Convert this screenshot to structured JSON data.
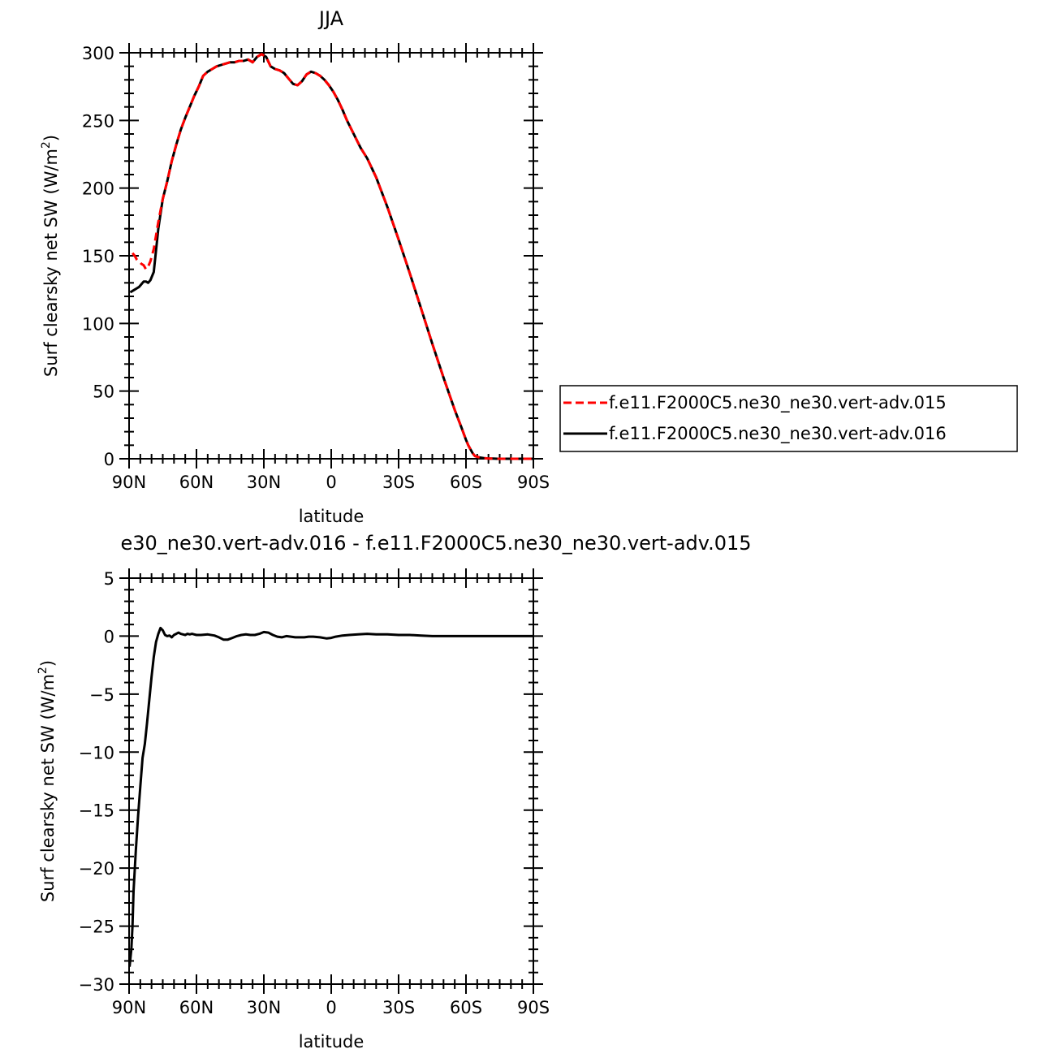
{
  "chart_data": [
    {
      "type": "line",
      "title": "JJA",
      "xlabel": "latitude",
      "ylabel_text": "Surf clearsky net SW (W/m",
      "ylabel_sup": "2",
      "ylabel_close": ")",
      "xlim": [
        90,
        -90
      ],
      "ylim": [
        0,
        300
      ],
      "xticks": [
        {
          "value": 90,
          "label": "90N"
        },
        {
          "value": 60,
          "label": "60N"
        },
        {
          "value": 30,
          "label": "30N"
        },
        {
          "value": 0,
          "label": "0"
        },
        {
          "value": -30,
          "label": "30S"
        },
        {
          "value": -60,
          "label": "60S"
        },
        {
          "value": -90,
          "label": "90S"
        }
      ],
      "yticks": [
        {
          "value": 0,
          "label": "0"
        },
        {
          "value": 50,
          "label": "50"
        },
        {
          "value": 100,
          "label": "100"
        },
        {
          "value": 150,
          "label": "150"
        },
        {
          "value": 200,
          "label": "200"
        },
        {
          "value": 250,
          "label": "250"
        },
        {
          "value": 300,
          "label": "300"
        }
      ],
      "legend_placement": "right",
      "series": [
        {
          "name": "f.e11.F2000C5.ne30_ne30.vert-adv.015",
          "color": "#ff0000",
          "dash": "dashed",
          "x": [
            88.5,
            87.5,
            86.5,
            85.5,
            84.5,
            83.5,
            82.5,
            81.5,
            80.5,
            79,
            77,
            75,
            73,
            71,
            69,
            67,
            65,
            63,
            61,
            59,
            57,
            55,
            53,
            51,
            49,
            47,
            45,
            43,
            41,
            39,
            37,
            35,
            33,
            31,
            29,
            27,
            25,
            23,
            21,
            19,
            17,
            15,
            13,
            11,
            9,
            7,
            5,
            3,
            1,
            -1,
            -3,
            -5,
            -7,
            -10,
            -13,
            -16,
            -20,
            -25,
            -30,
            -35,
            -40,
            -45,
            -50,
            -55,
            -58,
            -60,
            -61,
            -62,
            -63,
            -64,
            -66,
            -68,
            -70,
            -72,
            -74,
            -76,
            -78,
            -80,
            -84,
            -88,
            -90
          ],
          "values": [
            152,
            150,
            147,
            146,
            144,
            143,
            140,
            142,
            146,
            155,
            175,
            192,
            205,
            220,
            232,
            243,
            252,
            260,
            268,
            275,
            283,
            286,
            288,
            290,
            291,
            292,
            293,
            293,
            294,
            294,
            295,
            293,
            297,
            299,
            297,
            290,
            288,
            287,
            285,
            281,
            277,
            276,
            279,
            284,
            286,
            285,
            283,
            280,
            276,
            271,
            265,
            258,
            250,
            240,
            230,
            222,
            208,
            186,
            162,
            137,
            111,
            85,
            60,
            36,
            23,
            14,
            10,
            7,
            4,
            2,
            1,
            0.5,
            0.2,
            0.1,
            0,
            0,
            0,
            0,
            0,
            0,
            0
          ]
        },
        {
          "name": "f.e11.F2000C5.ne30_ne30.vert-adv.016",
          "color": "#000000",
          "dash": "solid",
          "x": [
            89.5,
            88.5,
            87.5,
            86.5,
            85.5,
            84.5,
            83.5,
            82.5,
            81.5,
            80.5,
            79,
            77,
            75,
            73,
            71,
            69,
            67,
            65,
            63,
            61,
            59,
            57,
            55,
            53,
            51,
            49,
            47,
            45,
            43,
            41,
            39,
            37,
            35,
            33,
            31,
            29,
            27,
            25,
            23,
            21,
            19,
            17,
            15,
            13,
            11,
            9,
            7,
            5,
            3,
            1,
            -1,
            -3,
            -5,
            -7,
            -10,
            -13,
            -16,
            -20,
            -25,
            -30,
            -35,
            -40,
            -45,
            -50,
            -55,
            -58,
            -60,
            -61,
            -62,
            -63,
            -64,
            -66,
            -68,
            -70,
            -72,
            -74,
            -76,
            -78,
            -80,
            -84,
            -88,
            -90
          ],
          "values": [
            123,
            124,
            125,
            126,
            127,
            129,
            131,
            131,
            130,
            132,
            138,
            170,
            192,
            205,
            220,
            232,
            243,
            252,
            260,
            268,
            275,
            283,
            286,
            288,
            290,
            291,
            292,
            293,
            293,
            294,
            294,
            295,
            293,
            297,
            299,
            297,
            290,
            288,
            287,
            285,
            281,
            277,
            276,
            279,
            284,
            286,
            285,
            283,
            280,
            276,
            271,
            265,
            258,
            250,
            240,
            230,
            222,
            208,
            186,
            162,
            137,
            111,
            85,
            60,
            36,
            23,
            14,
            10,
            7,
            4,
            2,
            1,
            0.5,
            0.2,
            0.1,
            0,
            0,
            0,
            0,
            0,
            0,
            0
          ]
        }
      ]
    },
    {
      "type": "line",
      "title": "e30_ne30.vert-adv.016 - f.e11.F2000C5.ne30_ne30.vert-adv.015",
      "xlabel": "latitude",
      "ylabel_text": "Surf clearsky net SW (W/m",
      "ylabel_sup": "2",
      "ylabel_close": ")",
      "xlim": [
        90,
        -90
      ],
      "ylim": [
        -30,
        5
      ],
      "xticks": [
        {
          "value": 90,
          "label": "90N"
        },
        {
          "value": 60,
          "label": "60N"
        },
        {
          "value": 30,
          "label": "30N"
        },
        {
          "value": 0,
          "label": "0"
        },
        {
          "value": -30,
          "label": "30S"
        },
        {
          "value": -60,
          "label": "60S"
        },
        {
          "value": -90,
          "label": "90S"
        }
      ],
      "yticks": [
        {
          "value": 5,
          "label": "5"
        },
        {
          "value": 0,
          "label": "0"
        },
        {
          "value": -5,
          "label": "−5"
        },
        {
          "value": -10,
          "label": "−10"
        },
        {
          "value": -15,
          "label": "−15"
        },
        {
          "value": -20,
          "label": "−20"
        },
        {
          "value": -25,
          "label": "−25"
        },
        {
          "value": -30,
          "label": "−30"
        }
      ],
      "series": [
        {
          "name": "",
          "color": "#000000",
          "dash": "solid",
          "x": [
            89.8,
            89,
            88.5,
            88,
            87,
            86,
            85,
            84,
            83,
            82,
            81,
            80,
            79,
            78,
            77,
            76,
            75,
            74,
            73,
            72,
            71,
            70,
            69,
            68,
            67,
            66,
            65,
            64,
            63,
            62,
            61,
            60,
            58,
            55,
            52,
            50,
            48,
            46,
            44,
            42,
            40,
            38,
            36,
            34,
            32,
            30,
            28,
            26,
            24,
            22,
            20,
            18,
            16,
            14,
            12,
            10,
            8,
            5,
            2,
            0,
            -2,
            -5,
            -8,
            -12,
            -16,
            -20,
            -25,
            -30,
            -35,
            -40,
            -45,
            -50,
            -55,
            -58,
            -60,
            -65,
            -70,
            -75,
            -80,
            -85,
            -90
          ],
          "values": [
            -28.5,
            -27,
            -25,
            -22,
            -18.5,
            -15.5,
            -13,
            -10.5,
            -9.3,
            -7.5,
            -5.5,
            -3.5,
            -1.8,
            -0.5,
            0.2,
            0.7,
            0.5,
            0.1,
            0,
            0.05,
            -0.1,
            0.1,
            0.2,
            0.3,
            0.2,
            0.15,
            0.1,
            0.2,
            0.15,
            0.2,
            0.15,
            0.1,
            0.1,
            0.15,
            0.05,
            -0.1,
            -0.3,
            -0.3,
            -0.15,
            0,
            0.1,
            0.15,
            0.1,
            0.1,
            0.2,
            0.35,
            0.3,
            0.1,
            -0.05,
            -0.1,
            0,
            -0.05,
            -0.1,
            -0.1,
            -0.1,
            -0.05,
            -0.05,
            -0.1,
            -0.2,
            -0.15,
            -0.05,
            0.05,
            0.1,
            0.15,
            0.2,
            0.15,
            0.15,
            0.1,
            0.1,
            0.05,
            0,
            0,
            0,
            0,
            0,
            0,
            0,
            0,
            0,
            0,
            0
          ]
        }
      ]
    }
  ]
}
